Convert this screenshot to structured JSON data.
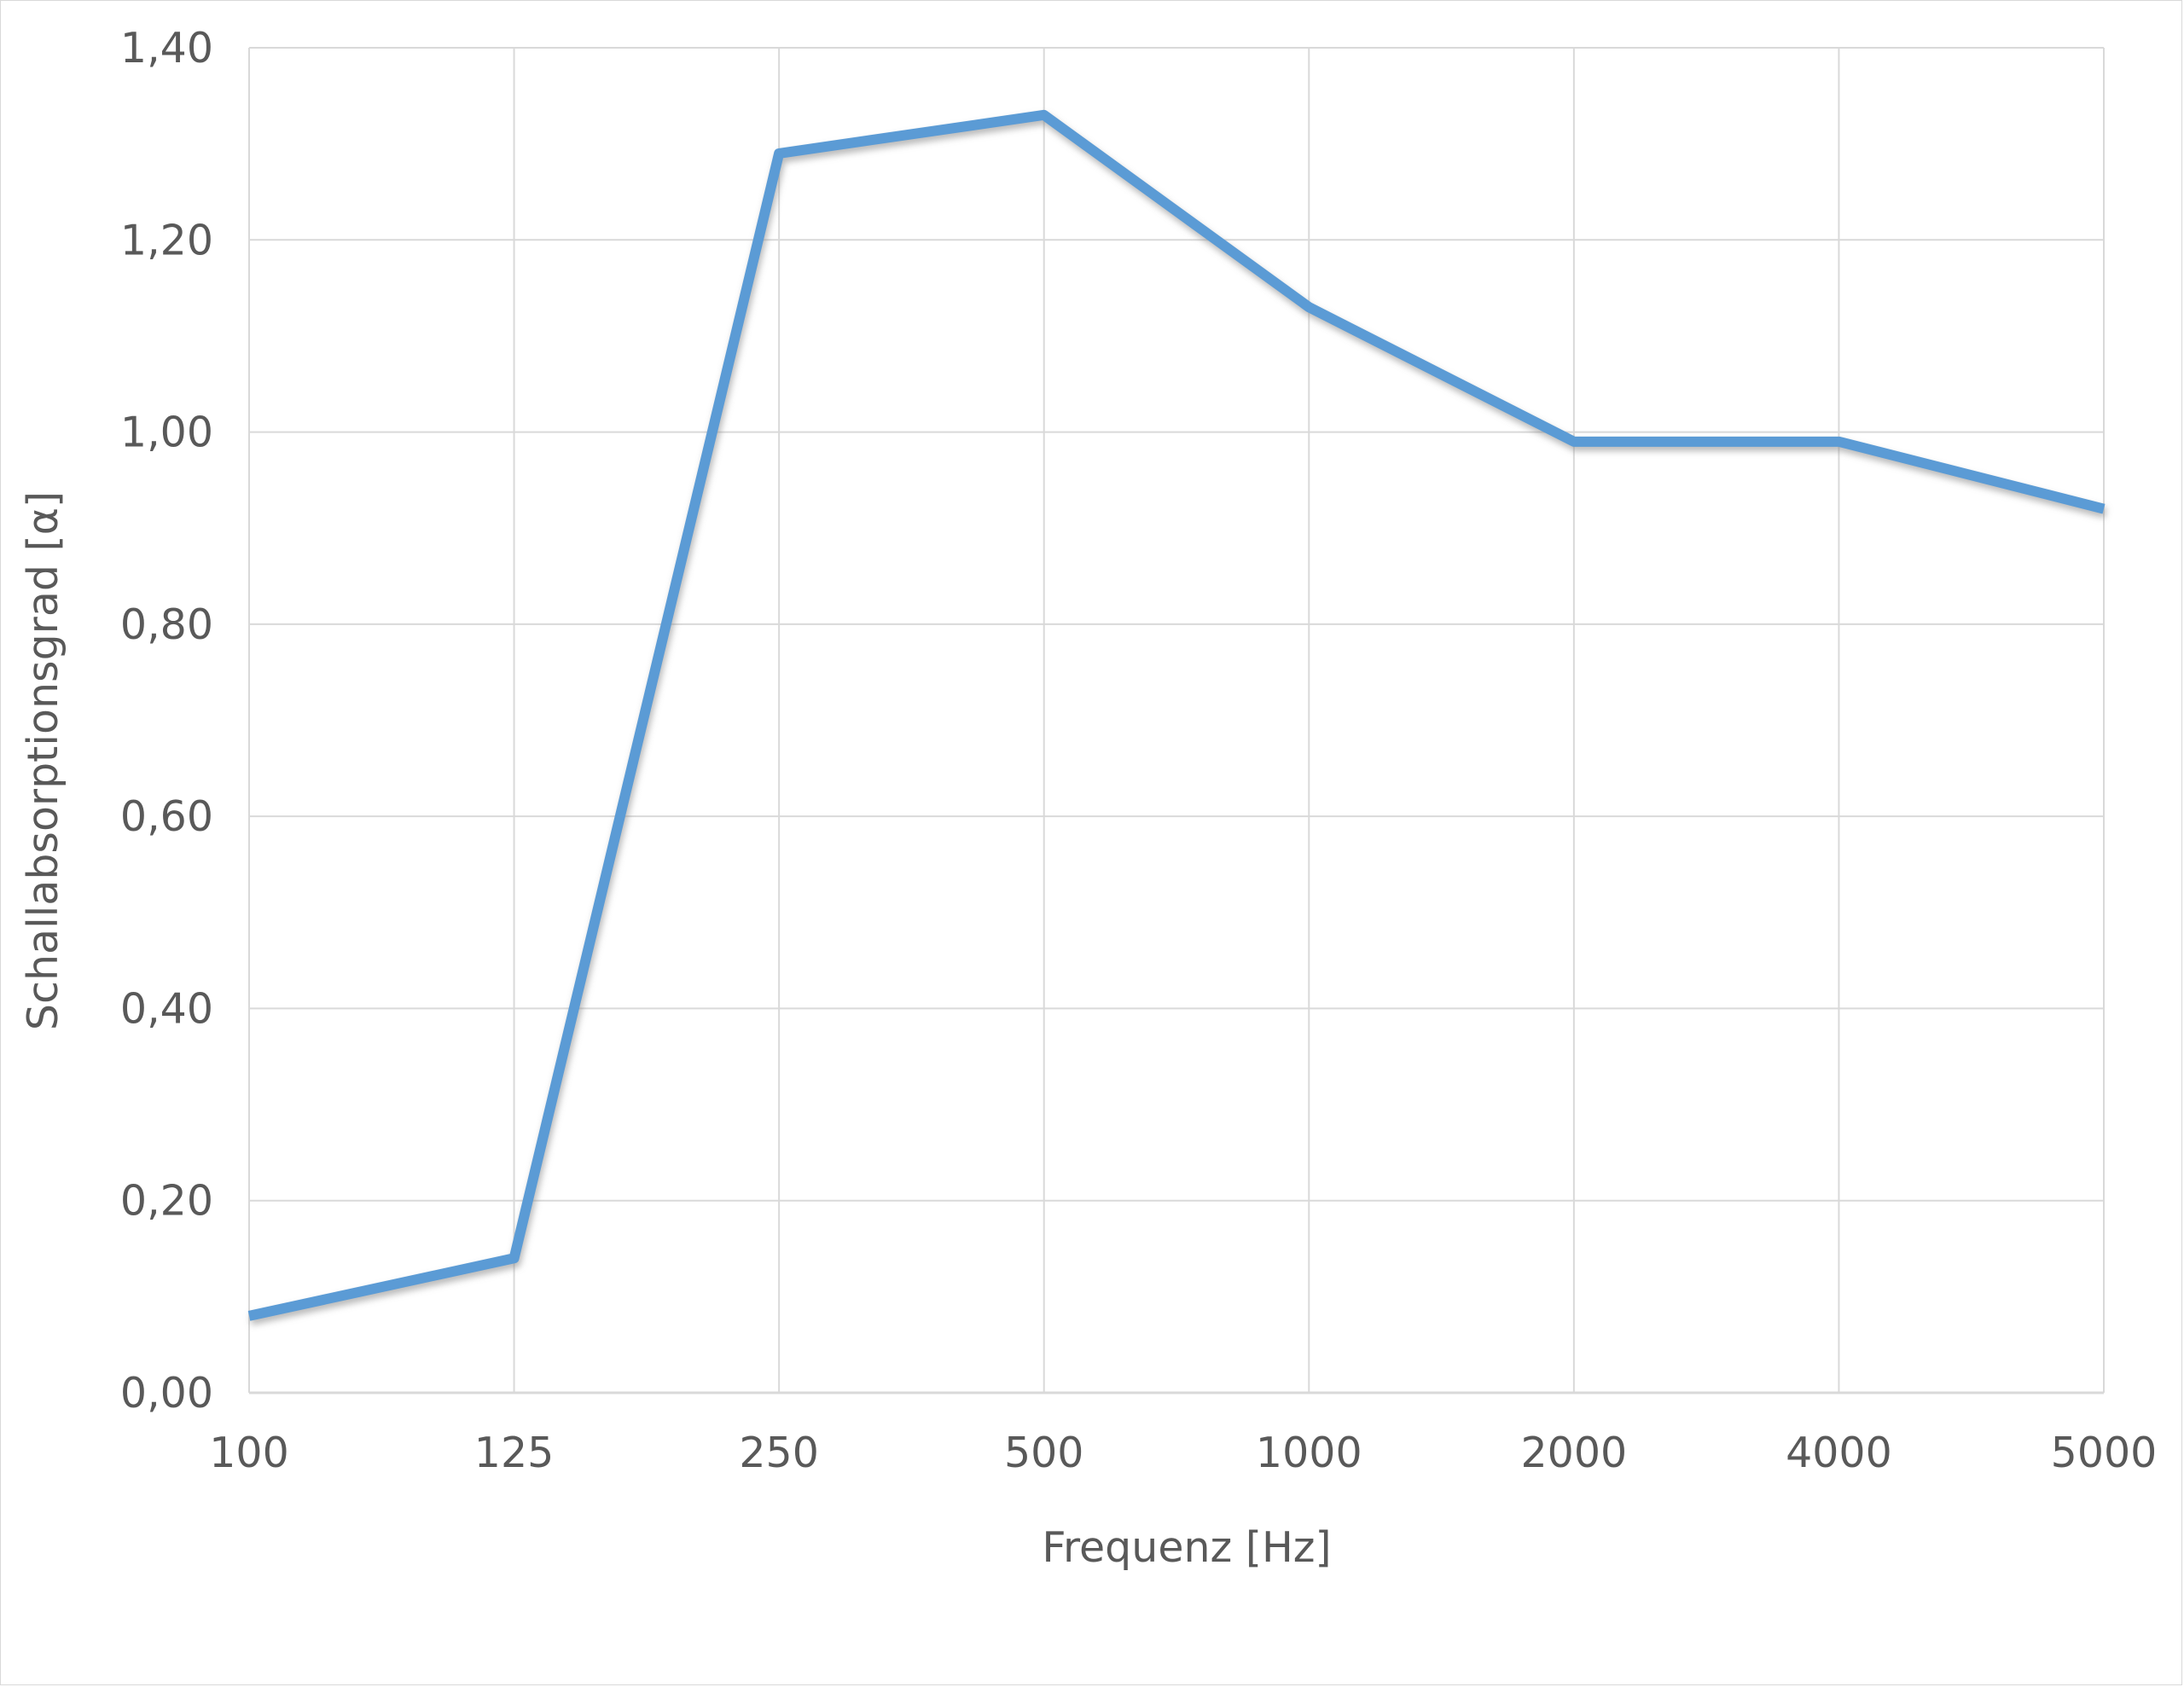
{
  "chart_data": {
    "type": "line",
    "categories": [
      "100",
      "125",
      "250",
      "500",
      "1000",
      "2000",
      "4000",
      "5000"
    ],
    "series": [
      {
        "values": [
          0.08,
          0.14,
          1.29,
          1.33,
          1.13,
          0.99,
          0.99,
          0.92
        ]
      }
    ],
    "xlabel": "Frequenz [Hz]",
    "ylabel": "Schallabsorptionsgrad [α]",
    "ylim": [
      0,
      1.4
    ],
    "yticks": [
      "0,00",
      "0,20",
      "0,40",
      "0,60",
      "0,80",
      "1,00",
      "1,20",
      "1,40"
    ],
    "grid": true,
    "legend": "none",
    "colors": {
      "line": "#5b9bd5",
      "shadow": "#7f7f7f",
      "grid": "#d9d9d9",
      "text": "#595959"
    }
  }
}
